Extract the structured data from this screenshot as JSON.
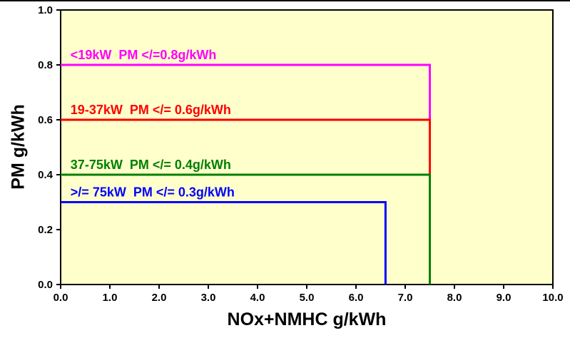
{
  "chart_data": {
    "type": "line",
    "subtype": "step-emission-limit-boxes",
    "title": "",
    "xlabel": "NOx+NMHC g/kWh",
    "ylabel": "PM g/kWh",
    "xlim": [
      0.0,
      10.0
    ],
    "ylim": [
      0.0,
      1.0
    ],
    "x_tick_labels": [
      "0.0",
      "1.0",
      "2.0",
      "3.0",
      "4.0",
      "5.0",
      "6.0",
      "7.0",
      "8.0",
      "9.0",
      "10.0"
    ],
    "y_tick_labels": [
      "0.0",
      "0.2",
      "0.4",
      "0.6",
      "0.8",
      "1.0"
    ],
    "grid": false,
    "legend_position": "inline-labels",
    "plot_background": "#FFFFCC",
    "frame_color": "#000000",
    "series": [
      {
        "name": "<19kW  PM </=0.8g/kWh",
        "power_category": "<19kW",
        "pm_limit_g_per_kwh": 0.8,
        "nox_nmhc_limit_g_per_kwh": 7.5,
        "color": "#FF00FF",
        "points": [
          [
            0.0,
            0.8
          ],
          [
            7.5,
            0.8
          ],
          [
            7.5,
            0.0
          ]
        ]
      },
      {
        "name": "19-37kW  PM </= 0.6g/kWh",
        "power_category": "19-37kW",
        "pm_limit_g_per_kwh": 0.6,
        "nox_nmhc_limit_g_per_kwh": 7.5,
        "color": "#FF0000",
        "points": [
          [
            0.0,
            0.6
          ],
          [
            7.5,
            0.6
          ],
          [
            7.5,
            0.0
          ]
        ]
      },
      {
        "name": "37-75kW  PM </= 0.4g/kWh",
        "power_category": "37-75kW",
        "pm_limit_g_per_kwh": 0.4,
        "nox_nmhc_limit_g_per_kwh": 7.5,
        "color": "#008000",
        "points": [
          [
            0.0,
            0.4
          ],
          [
            7.5,
            0.4
          ],
          [
            7.5,
            0.0
          ]
        ]
      },
      {
        "name": ">/= 75kW  PM </= 0.3g/kWh",
        "power_category": ">/= 75kW",
        "pm_limit_g_per_kwh": 0.3,
        "nox_nmhc_limit_g_per_kwh": 6.6,
        "color": "#0000FF",
        "points": [
          [
            0.0,
            0.3
          ],
          [
            6.6,
            0.3
          ],
          [
            6.6,
            0.0
          ]
        ]
      }
    ]
  }
}
